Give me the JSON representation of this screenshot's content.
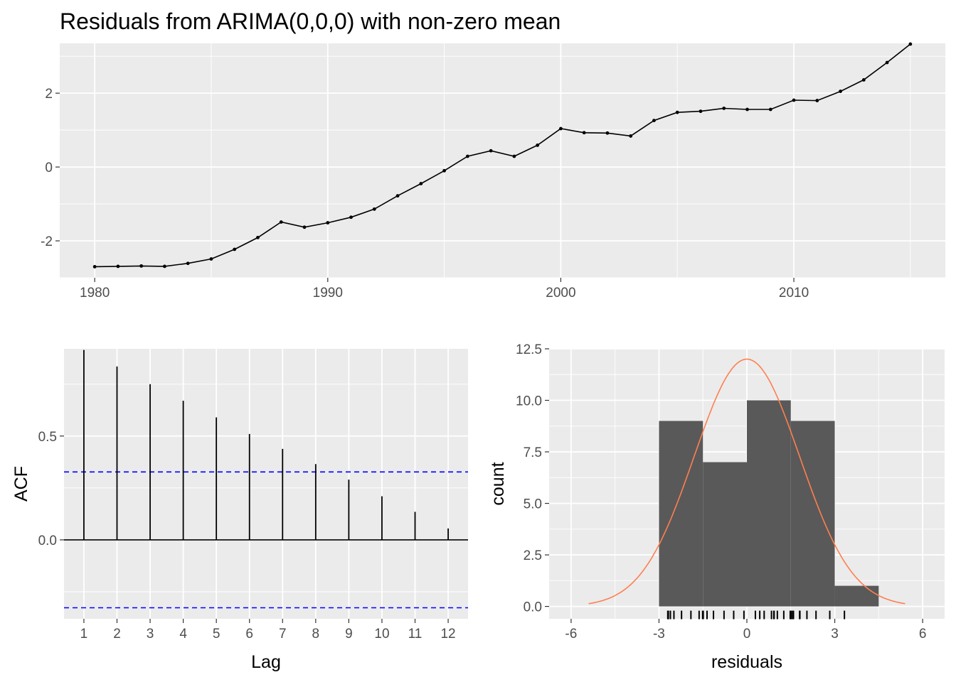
{
  "title": "Residuals from ARIMA(0,0,0) with non-zero mean",
  "colors": {
    "panel_bg": "#ebebeb",
    "grid_major": "#ffffff",
    "line": "#000000",
    "ci_line": "#0000ff",
    "hist_fill": "#595959",
    "density": "#ff7f50",
    "tick_text": "#4d4d4d"
  },
  "chart_data": [
    {
      "type": "line",
      "name": "residual-time-series",
      "xlabel": "",
      "ylabel": "",
      "xlim": [
        1978.5,
        2016.5
      ],
      "ylim": [
        -3.0,
        3.35
      ],
      "x_ticks": [
        1980,
        1990,
        2000,
        2010
      ],
      "y_ticks": [
        -2,
        0,
        2
      ],
      "x_tick_labels": [
        "1980",
        "1990",
        "2000",
        "2010"
      ],
      "y_tick_labels": [
        "-2",
        "0",
        "2"
      ],
      "x": [
        1980,
        1981,
        1982,
        1983,
        1984,
        1985,
        1986,
        1987,
        1988,
        1989,
        1990,
        1991,
        1992,
        1993,
        1994,
        1995,
        1996,
        1997,
        1998,
        1999,
        2000,
        2001,
        2002,
        2003,
        2004,
        2005,
        2006,
        2007,
        2008,
        2009,
        2010,
        2011,
        2012,
        2013,
        2014,
        2015
      ],
      "y": [
        -2.7,
        -2.69,
        -2.68,
        -2.69,
        -2.61,
        -2.49,
        -2.23,
        -1.91,
        -1.49,
        -1.63,
        -1.51,
        -1.36,
        -1.14,
        -0.78,
        -0.45,
        -0.1,
        0.29,
        0.44,
        0.29,
        0.59,
        1.04,
        0.93,
        0.92,
        0.84,
        1.26,
        1.48,
        1.51,
        1.59,
        1.56,
        1.56,
        1.81,
        1.8,
        2.05,
        2.36,
        2.83,
        3.33
      ],
      "grid": true
    },
    {
      "type": "bar",
      "name": "acf",
      "xlabel": "Lag",
      "ylabel": "ACF",
      "xlim": [
        0.4,
        12.6
      ],
      "ylim": [
        -0.38,
        0.92
      ],
      "x_ticks": [
        1,
        2,
        3,
        4,
        5,
        6,
        7,
        8,
        9,
        10,
        11,
        12
      ],
      "y_ticks": [
        0.0,
        0.5
      ],
      "x_tick_labels": [
        "1",
        "2",
        "3",
        "4",
        "5",
        "6",
        "7",
        "8",
        "9",
        "10",
        "11",
        "12"
      ],
      "y_tick_labels": [
        "0.0",
        "0.5"
      ],
      "categories": [
        1,
        2,
        3,
        4,
        5,
        6,
        7,
        8,
        9,
        10,
        11,
        12
      ],
      "values": [
        0.915,
        0.835,
        0.75,
        0.67,
        0.59,
        0.51,
        0.438,
        0.365,
        0.29,
        0.21,
        0.135,
        0.055
      ],
      "ci": [
        0.327,
        -0.327
      ],
      "grid": true
    },
    {
      "type": "bar",
      "name": "histogram",
      "xlabel": "residuals",
      "ylabel": "count",
      "xlim": [
        -6.75,
        6.75
      ],
      "ylim": [
        -0.6,
        12.5
      ],
      "x_ticks": [
        -6,
        -3,
        0,
        3,
        6
      ],
      "y_ticks": [
        0.0,
        2.5,
        5.0,
        7.5,
        10.0,
        12.5
      ],
      "x_tick_labels": [
        "-6",
        "-3",
        "0",
        "3",
        "6"
      ],
      "y_tick_labels": [
        "0.0",
        "2.5",
        "5.0",
        "7.5",
        "10.0",
        "12.5"
      ],
      "bins": [
        {
          "x0": -3.0,
          "x1": -1.5,
          "count": 9
        },
        {
          "x0": -1.5,
          "x1": 0.0,
          "count": 7
        },
        {
          "x0": 0.0,
          "x1": 1.5,
          "count": 10
        },
        {
          "x0": 1.5,
          "x1": 3.0,
          "count": 9
        },
        {
          "x0": 3.0,
          "x1": 4.5,
          "count": 1
        }
      ],
      "density": {
        "mean": 0.0,
        "sd": 1.8,
        "peak": 12.0,
        "x_range": [
          -5.4,
          5.4
        ]
      },
      "rug": [
        -2.7,
        -2.69,
        -2.68,
        -2.61,
        -2.49,
        -2.23,
        -1.91,
        -1.63,
        -1.51,
        -1.49,
        -1.36,
        -1.14,
        -0.78,
        -0.45,
        -0.1,
        0.29,
        0.44,
        0.59,
        0.84,
        0.92,
        0.93,
        1.04,
        1.26,
        1.48,
        1.51,
        1.56,
        1.59,
        1.8,
        1.81,
        2.05,
        2.36,
        2.83,
        3.33
      ],
      "grid": true
    }
  ]
}
